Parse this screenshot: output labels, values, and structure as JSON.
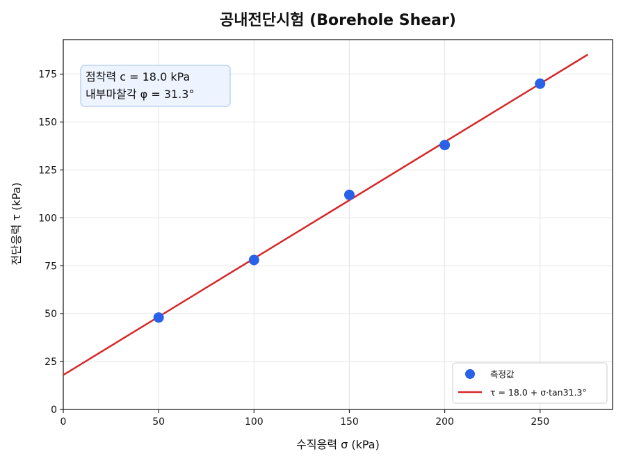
{
  "chart_data": {
    "type": "scatter",
    "title": "공내전단시험 (Borehole Shear)",
    "xlabel": "수직응력 σ (kPa)",
    "ylabel": "전단응력 τ (kPa)",
    "xlim": [
      0,
      288
    ],
    "ylim": [
      0,
      193
    ],
    "xticks": [
      0,
      50,
      100,
      150,
      200,
      250
    ],
    "yticks": [
      0,
      25,
      50,
      75,
      100,
      125,
      150,
      175
    ],
    "grid": true,
    "legend_position": "bottom-right",
    "series": [
      {
        "name": "측정값",
        "kind": "scatter",
        "color": "#2962e8",
        "x": [
          50,
          100,
          150,
          200,
          250
        ],
        "y": [
          48,
          78,
          112,
          138,
          170
        ]
      },
      {
        "name": "τ = 18.0 + σ·tan31.3°",
        "kind": "line",
        "color": "#d62728",
        "x": [
          0,
          275
        ],
        "y": [
          18.0,
          185.2
        ]
      }
    ],
    "annotation": {
      "lines": [
        "점착력 c = 18.0 kPa",
        "내부마찰각 φ = 31.3°"
      ]
    }
  }
}
